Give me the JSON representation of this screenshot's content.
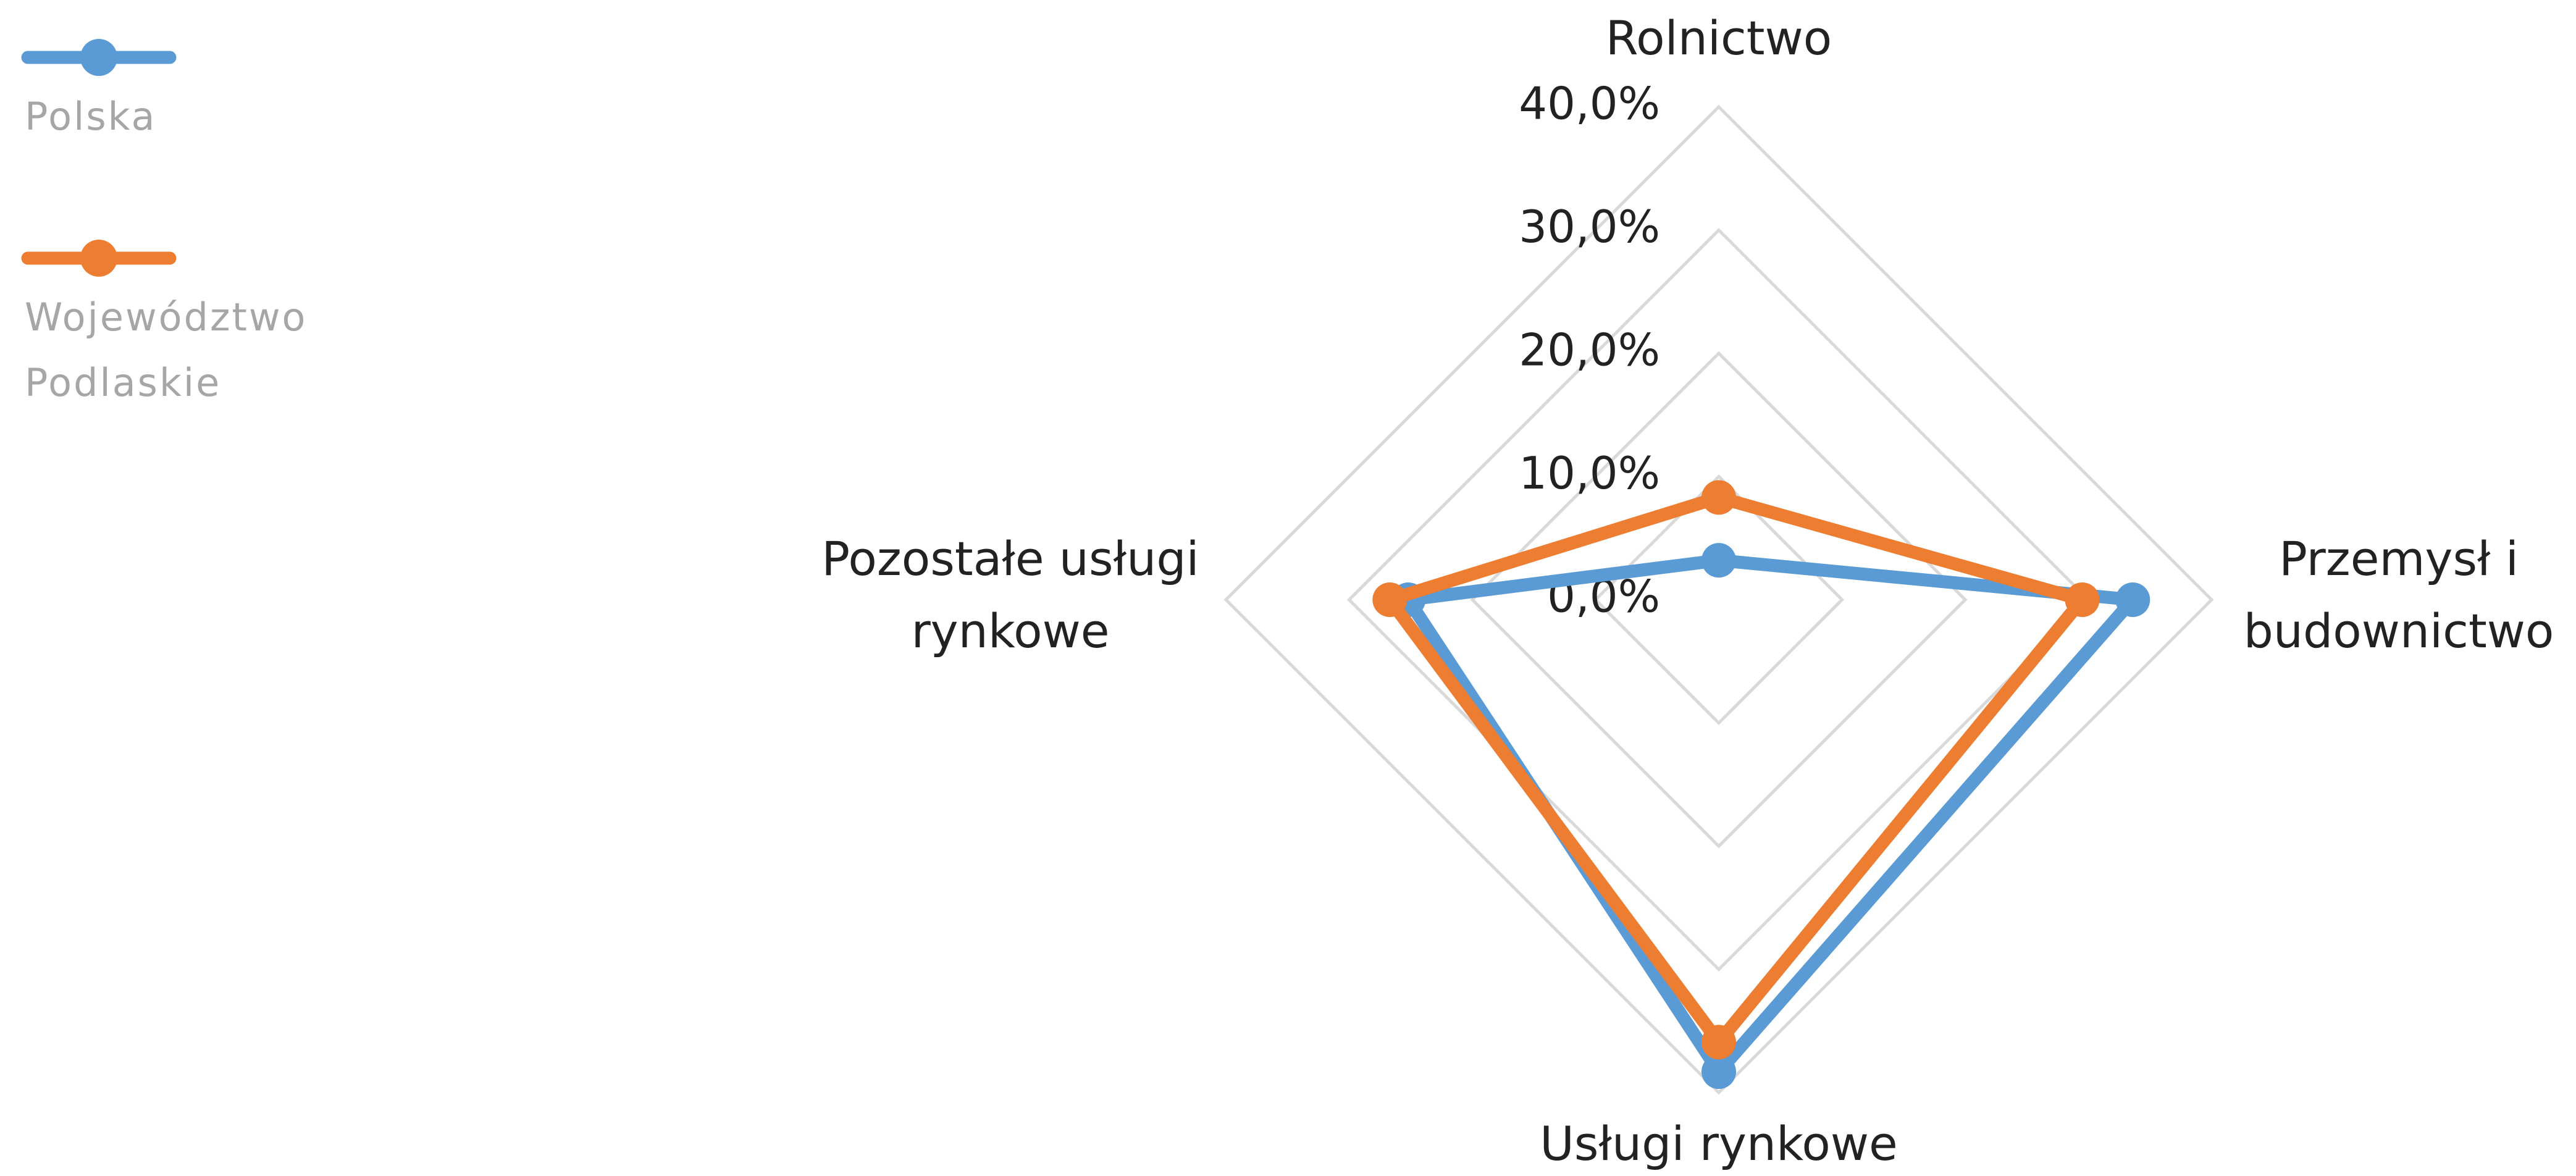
{
  "chart_data": {
    "type": "radar",
    "categories": [
      "Rolnictwo",
      "Przemysł i budownictwo",
      "Usługi rynkowe",
      "Pozostałe usługi rynkowe"
    ],
    "series": [
      {
        "name": "Polska",
        "color": "#5b9bd5",
        "values": [
          3.2,
          33.6,
          38.3,
          25.2
        ]
      },
      {
        "name": "Województwo Podlaskie",
        "color": "#ed7d31",
        "values": [
          8.3,
          29.5,
          35.9,
          26.7
        ]
      }
    ],
    "ylim": [
      0,
      40
    ],
    "yticks": [
      {
        "value": 0,
        "label": "0,0%"
      },
      {
        "value": 10,
        "label": "10,0%"
      },
      {
        "value": 20,
        "label": "20,0%"
      },
      {
        "value": 30,
        "label": "30,0%"
      },
      {
        "value": 40,
        "label": "40,0%"
      }
    ],
    "grid": true,
    "legend": "left"
  }
}
